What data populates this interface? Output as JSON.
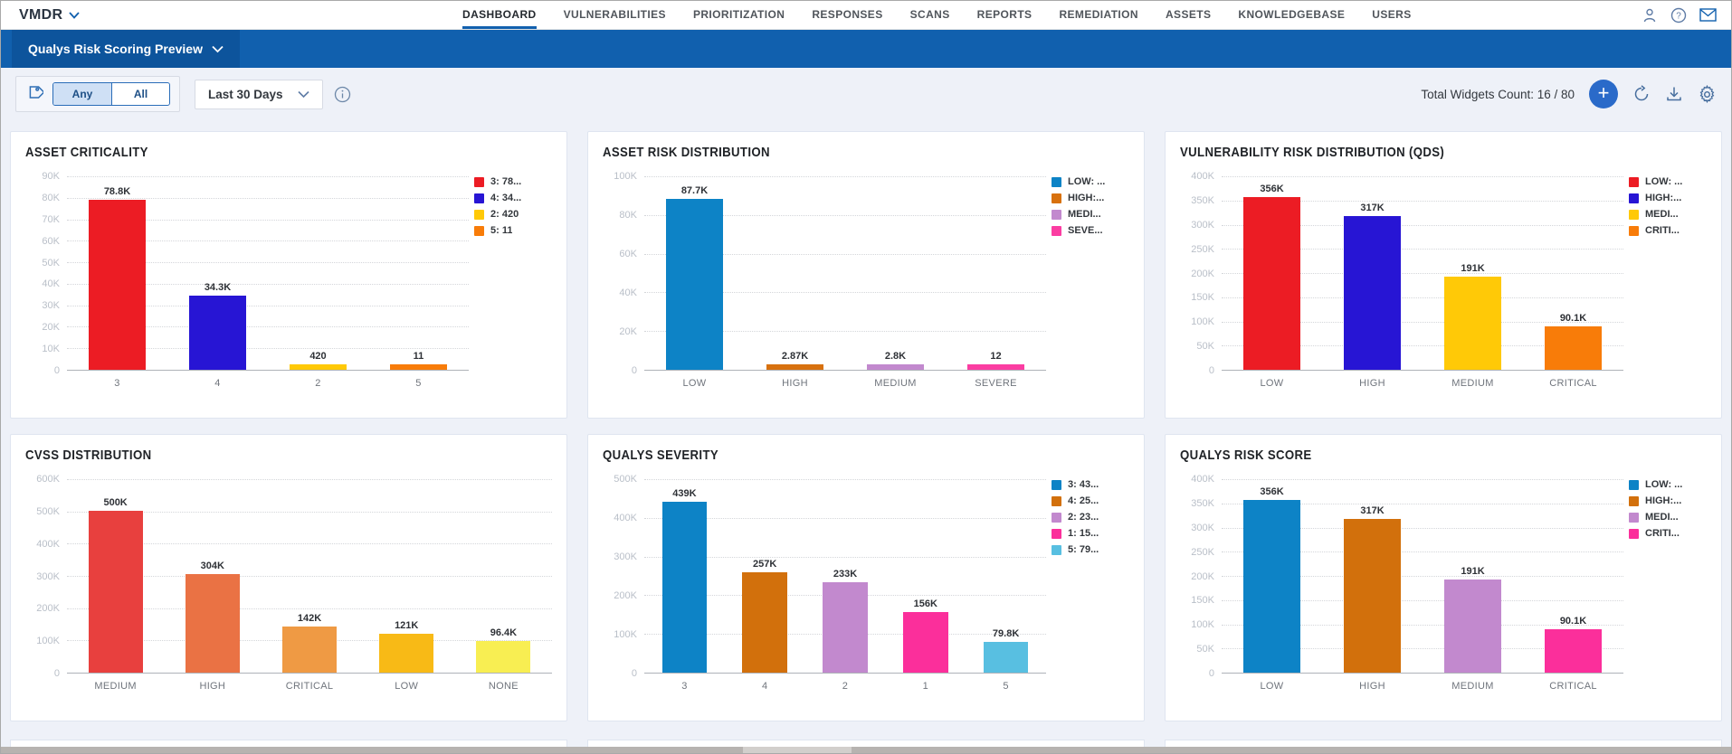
{
  "header": {
    "app_name": "VMDR",
    "tabs": [
      {
        "label": "DASHBOARD",
        "active": true
      },
      {
        "label": "VULNERABILITIES",
        "active": false
      },
      {
        "label": "PRIORITIZATION",
        "active": false
      },
      {
        "label": "RESPONSES",
        "active": false
      },
      {
        "label": "SCANS",
        "active": false
      },
      {
        "label": "REPORTS",
        "active": false
      },
      {
        "label": "REMEDIATION",
        "active": false
      },
      {
        "label": "ASSETS",
        "active": false
      },
      {
        "label": "KNOWLEDGEBASE",
        "active": false
      },
      {
        "label": "USERS",
        "active": false
      }
    ],
    "action_icons": [
      "user-icon",
      "help-icon",
      "mail-icon"
    ]
  },
  "dashboard_bar": {
    "title": "Qualys Risk Scoring Preview"
  },
  "toolbar": {
    "match_options": [
      "Any",
      "All"
    ],
    "selected_match": "Any",
    "date_range": "Last 30 Days",
    "widgets_count_label": "Total Widgets Count: 16 / 80",
    "action_icons": [
      "tag-icon",
      "info-icon",
      "add-widget-button",
      "refresh-icon",
      "download-icon",
      "gear-icon"
    ]
  },
  "colors": {
    "accent_blue": "#1160ae",
    "dashbar_select_blue": "#0d549c",
    "add_button_blue": "#2a6ac9",
    "page_background": "#eef1f8"
  },
  "widgets": [
    {
      "title": "ASSET CRITICALITY",
      "type": "bar",
      "y": {
        "max": 90000,
        "tick_labels": [
          "90K",
          "80K",
          "70K",
          "60K",
          "50K",
          "40K",
          "30K",
          "20K",
          "10K",
          "0"
        ]
      },
      "bars": [
        {
          "category": "3",
          "value": 78800,
          "label": "78.8K",
          "color": "#ec1c24"
        },
        {
          "category": "4",
          "value": 34300,
          "label": "34.3K",
          "color": "#2715d4"
        },
        {
          "category": "2",
          "value": 420,
          "label": "420",
          "color": "#ffc907"
        },
        {
          "category": "5",
          "value": 11,
          "label": "11",
          "color": "#f87c09"
        }
      ],
      "legend": [
        {
          "label": "3: 78...",
          "color": "#ec1c24"
        },
        {
          "label": "4: 34...",
          "color": "#2715d4"
        },
        {
          "label": "2: 420",
          "color": "#ffc907"
        },
        {
          "label": "5: 11",
          "color": "#f87c09"
        }
      ]
    },
    {
      "title": "ASSET RISK DISTRIBUTION",
      "type": "bar",
      "y": {
        "max": 100000,
        "tick_labels": [
          "100K",
          "80K",
          "60K",
          "40K",
          "20K",
          "0"
        ]
      },
      "bars": [
        {
          "category": "LOW",
          "value": 87700,
          "label": "87.7K",
          "color": "#0d83c6"
        },
        {
          "category": "HIGH",
          "value": 2870,
          "label": "2.87K",
          "color": "#d8710e"
        },
        {
          "category": "MEDIUM",
          "value": 2800,
          "label": "2.8K",
          "color": "#c289ce"
        },
        {
          "category": "SEVERE",
          "value": 12,
          "label": "12",
          "color": "#fb3da2"
        }
      ],
      "legend": [
        {
          "label": "LOW: ...",
          "color": "#0d83c6"
        },
        {
          "label": "HIGH:...",
          "color": "#d8710e"
        },
        {
          "label": "MEDI...",
          "color": "#c289ce"
        },
        {
          "label": "SEVE...",
          "color": "#fb3da2"
        }
      ]
    },
    {
      "title": "VULNERABILITY RISK DISTRIBUTION (QDS)",
      "type": "bar",
      "y": {
        "max": 400000,
        "tick_labels": [
          "400K",
          "350K",
          "300K",
          "250K",
          "200K",
          "150K",
          "100K",
          "50K",
          "0"
        ]
      },
      "bars": [
        {
          "category": "LOW",
          "value": 356000,
          "label": "356K",
          "color": "#ec1c24"
        },
        {
          "category": "HIGH",
          "value": 317000,
          "label": "317K",
          "color": "#2715d4"
        },
        {
          "category": "MEDIUM",
          "value": 191000,
          "label": "191K",
          "color": "#ffc907"
        },
        {
          "category": "CRITICAL",
          "value": 90100,
          "label": "90.1K",
          "color": "#f87c09"
        }
      ],
      "legend": [
        {
          "label": "LOW: ...",
          "color": "#ec1c24"
        },
        {
          "label": "HIGH:...",
          "color": "#2715d4"
        },
        {
          "label": "MEDI...",
          "color": "#ffc907"
        },
        {
          "label": "CRITI...",
          "color": "#f87c09"
        }
      ]
    },
    {
      "title": "CVSS DISTRIBUTION",
      "type": "bar",
      "y": {
        "max": 600000,
        "tick_labels": [
          "600K",
          "500K",
          "400K",
          "300K",
          "200K",
          "100K",
          "0"
        ]
      },
      "bars": [
        {
          "category": "MEDIUM",
          "value": 500000,
          "label": "500K",
          "color": "#e8403e"
        },
        {
          "category": "HIGH",
          "value": 304000,
          "label": "304K",
          "color": "#ea7244"
        },
        {
          "category": "CRITICAL",
          "value": 142000,
          "label": "142K",
          "color": "#ef9a44"
        },
        {
          "category": "LOW",
          "value": 121000,
          "label": "121K",
          "color": "#f8ba16"
        },
        {
          "category": "NONE",
          "value": 96400,
          "label": "96.4K",
          "color": "#f8ee52"
        }
      ],
      "legend": []
    },
    {
      "title": "QUALYS SEVERITY",
      "type": "bar",
      "y": {
        "max": 500000,
        "tick_labels": [
          "500K",
          "400K",
          "300K",
          "200K",
          "100K",
          "0"
        ]
      },
      "bars": [
        {
          "category": "3",
          "value": 439000,
          "label": "439K",
          "color": "#0d83c6"
        },
        {
          "category": "4",
          "value": 257000,
          "label": "257K",
          "color": "#d2700c"
        },
        {
          "category": "2",
          "value": 233000,
          "label": "233K",
          "color": "#c289ce"
        },
        {
          "category": "1",
          "value": 156000,
          "label": "156K",
          "color": "#fb2f9b"
        },
        {
          "category": "5",
          "value": 79800,
          "label": "79.8K",
          "color": "#58bfe1"
        }
      ],
      "legend": [
        {
          "label": "3: 43...",
          "color": "#0d83c6"
        },
        {
          "label": "4: 25...",
          "color": "#d2700c"
        },
        {
          "label": "2: 23...",
          "color": "#c289ce"
        },
        {
          "label": "1: 15...",
          "color": "#fb2f9b"
        },
        {
          "label": "5: 79...",
          "color": "#58bfe1"
        }
      ]
    },
    {
      "title": "QUALYS RISK SCORE",
      "type": "bar",
      "y": {
        "max": 400000,
        "tick_labels": [
          "400K",
          "350K",
          "300K",
          "250K",
          "200K",
          "150K",
          "100K",
          "50K",
          "0"
        ]
      },
      "bars": [
        {
          "category": "LOW",
          "value": 356000,
          "label": "356K",
          "color": "#0d83c6"
        },
        {
          "category": "HIGH",
          "value": 317000,
          "label": "317K",
          "color": "#d2700c"
        },
        {
          "category": "MEDIUM",
          "value": 191000,
          "label": "191K",
          "color": "#c289ce"
        },
        {
          "category": "CRITICAL",
          "value": 90100,
          "label": "90.1K",
          "color": "#fb2f9b"
        }
      ],
      "legend": [
        {
          "label": "LOW: ...",
          "color": "#0d83c6"
        },
        {
          "label": "HIGH:...",
          "color": "#d2700c"
        },
        {
          "label": "MEDI...",
          "color": "#c289ce"
        },
        {
          "label": "CRITI...",
          "color": "#fb2f9b"
        }
      ]
    }
  ]
}
